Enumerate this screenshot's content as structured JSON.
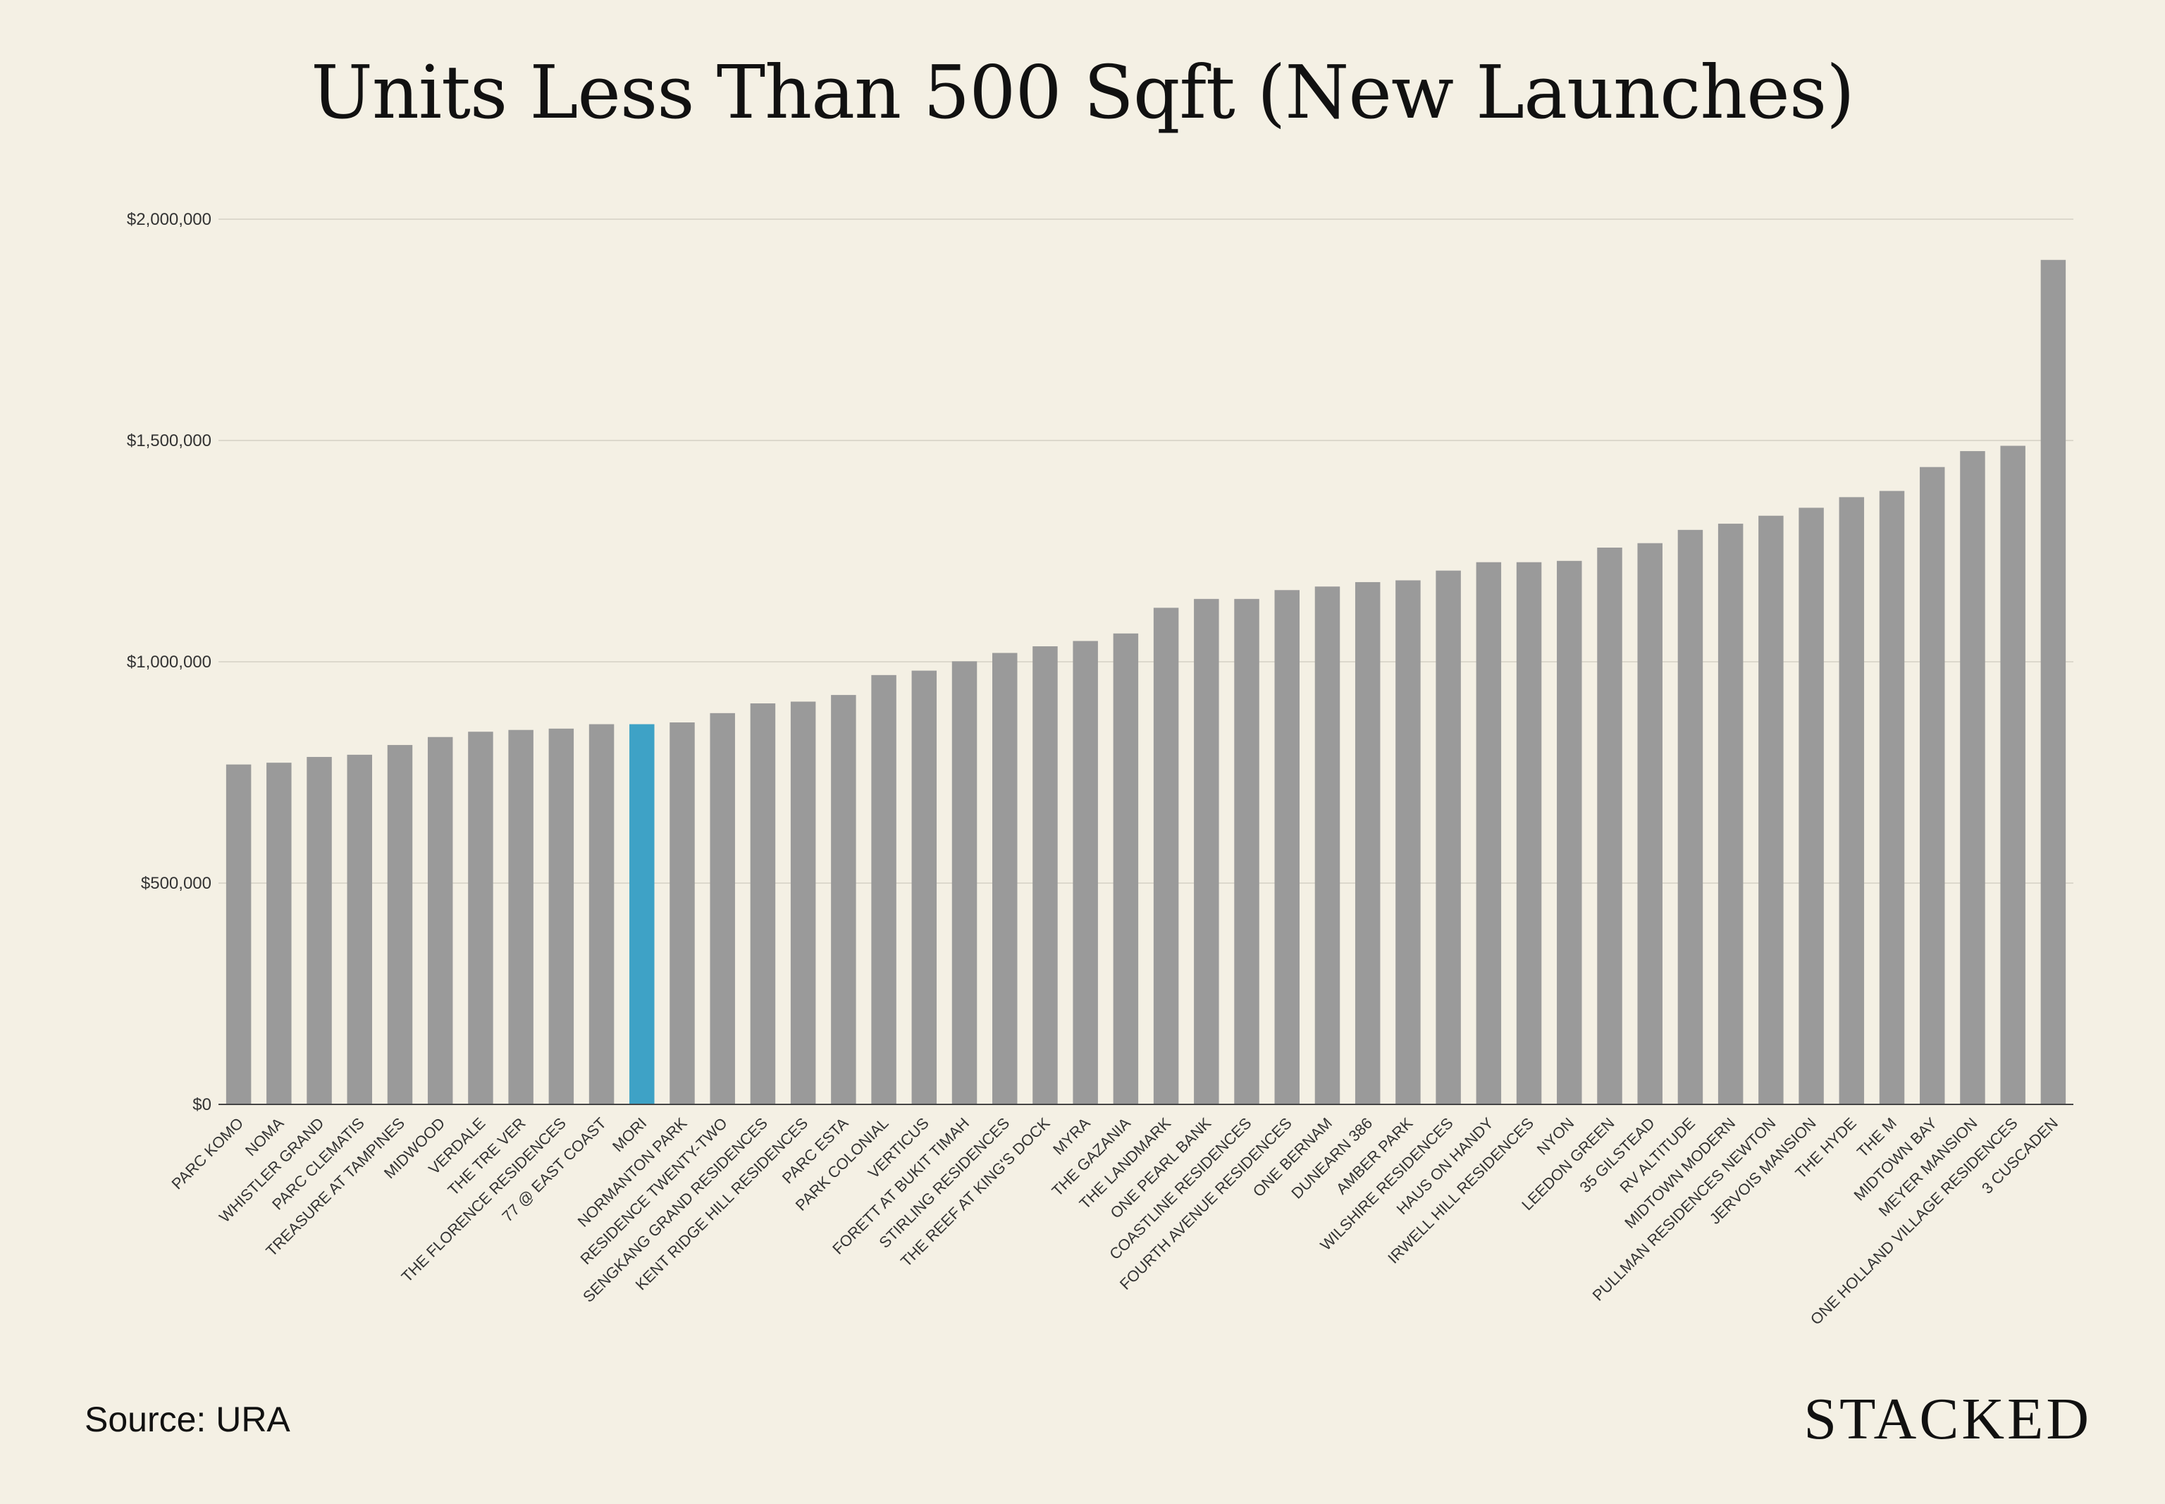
{
  "source_text": "Source: URA",
  "brand_text": "STACKED",
  "chart_data": {
    "type": "bar",
    "title": "Units Less Than 500 Sqft (New Launches)",
    "xlabel": "",
    "ylabel": "",
    "ylim": [
      0,
      2000000
    ],
    "yticks": [
      {
        "value": 0,
        "label": "$0"
      },
      {
        "value": 500000,
        "label": "$500,000"
      },
      {
        "value": 1000000,
        "label": "$1,000,000"
      },
      {
        "value": 1500000,
        "label": "$1,500,000"
      },
      {
        "value": 2000000,
        "label": "$2,000,000"
      }
    ],
    "grid": true,
    "bar_color": "#9a9a9a",
    "highlight_color": "#3ea2c6",
    "highlight_category": "MORI",
    "categories": [
      "PARC KOMO",
      "NOMA",
      "WHISTLER GRAND",
      "PARC CLEMATIS",
      "TREASURE AT TAMPINES",
      "MIDWOOD",
      "VERDALE",
      "THE TRE VER",
      "THE FLORENCE RESIDENCES",
      "77 @ EAST COAST",
      "MORI",
      "NORMANTON PARK",
      "RESIDENCE TWENTY-TWO",
      "SENGKANG GRAND RESIDENCES",
      "KENT RIDGE HILL RESIDENCES",
      "PARC ESTA",
      "PARK COLONIAL",
      "VERTICUS",
      "FORETT AT BUKIT TIMAH",
      "STIRLING RESIDENCES",
      "THE REEF AT KING'S DOCK",
      "MYRA",
      "THE GAZANIA",
      "THE LANDMARK",
      "ONE PEARL BANK",
      "COASTLINE RESIDENCES",
      "FOURTH AVENUE RESIDENCES",
      "ONE BERNAM",
      "DUNEARN 386",
      "AMBER PARK",
      "WILSHIRE RESIDENCES",
      "HAUS ON HANDY",
      "IRWELL HILL RESIDENCES",
      "NYON",
      "LEEDON GREEN",
      "35 GILSTEAD",
      "RV ALTITUDE",
      "MIDTOWN MODERN",
      "PULLMAN RESIDENCES NEWTON",
      "JERVOIS MANSION",
      "THE HYDE",
      "THE M",
      "MIDTOWN BAY",
      "MEYER MANSION",
      "ONE HOLLAND VILLAGE RESIDENCES",
      "3 CUSCADEN"
    ],
    "values": [
      768000,
      772000,
      785000,
      790000,
      812000,
      830000,
      842000,
      846000,
      849000,
      859000,
      859000,
      863000,
      884000,
      906000,
      910000,
      925000,
      970000,
      980000,
      1001000,
      1020000,
      1035000,
      1047000,
      1064000,
      1122000,
      1142000,
      1142000,
      1162000,
      1170000,
      1180000,
      1184000,
      1206000,
      1225000,
      1225000,
      1228000,
      1258000,
      1268000,
      1298000,
      1312000,
      1330000,
      1348000,
      1372000,
      1386000,
      1440000,
      1476000,
      1488000,
      1908000
    ]
  }
}
